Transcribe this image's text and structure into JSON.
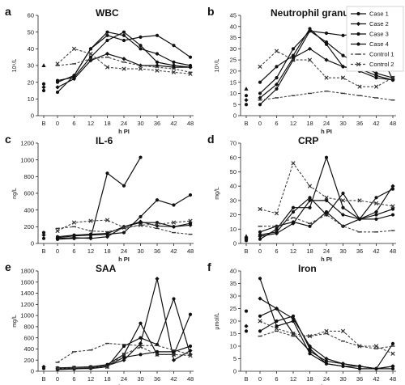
{
  "legend": [
    {
      "name": "Case 1",
      "marker": "circle",
      "dash": false
    },
    {
      "name": "Case 2",
      "marker": "diamond",
      "dash": false
    },
    {
      "name": "Case 3",
      "marker": "circle",
      "dash": false
    },
    {
      "name": "Case 4",
      "marker": "circle",
      "dash": false
    },
    {
      "name": "Control 1",
      "marker": "dash",
      "dash": true
    },
    {
      "name": "Control 2",
      "marker": "x",
      "dash": true
    }
  ],
  "chart_data": [
    {
      "type": "line",
      "letter": "a",
      "title": "WBC",
      "ylabel": "10⁹/L",
      "xlabel": "h PI",
      "baseline_label": "B",
      "categories": [
        "0",
        "6",
        "12",
        "18",
        "24",
        "30",
        "36",
        "42",
        "48"
      ],
      "ylim": [
        0,
        60
      ],
      "yticks": [
        0,
        10,
        20,
        30,
        40,
        50,
        60
      ],
      "baseline": [
        [
          15,
          "circle"
        ],
        [
          17,
          "diamond"
        ],
        [
          19,
          "circle"
        ],
        [
          30,
          "triangle"
        ]
      ],
      "series": [
        {
          "name": "Case 1",
          "values": [
            14,
            24,
            40,
            48,
            45,
            47,
            48,
            42,
            35
          ]
        },
        {
          "name": "Case 2",
          "values": [
            17,
            22,
            33,
            37,
            34,
            30,
            30,
            29,
            29
          ]
        },
        {
          "name": "Case 3",
          "values": [
            21,
            23,
            35,
            45,
            50,
            42,
            32,
            30,
            29
          ]
        },
        {
          "name": "Case 4",
          "values": [
            20,
            24,
            40,
            50,
            48,
            40,
            37,
            32,
            30
          ]
        },
        {
          "name": "Control 1",
          "values": [
            30,
            31,
            34,
            35,
            32,
            30,
            29,
            28,
            26
          ]
        },
        {
          "name": "Control 2",
          "values": [
            31,
            40,
            37,
            29,
            28,
            28,
            27,
            26,
            25
          ]
        }
      ]
    },
    {
      "type": "line",
      "letter": "b",
      "title": "Neutrophil granulocytes",
      "ylabel": "10⁹/L",
      "xlabel": "h PI",
      "baseline_label": "B",
      "categories": [
        "0",
        "6",
        "12",
        "18",
        "24",
        "30",
        "36",
        "42",
        "48"
      ],
      "ylim": [
        0,
        45
      ],
      "yticks": [
        0,
        5,
        10,
        15,
        20,
        25,
        30,
        35,
        40,
        45
      ],
      "baseline": [
        [
          5,
          "circle"
        ],
        [
          7,
          "diamond"
        ],
        [
          9,
          "circle"
        ],
        [
          12,
          "triangle"
        ]
      ],
      "series": [
        {
          "name": "Case 1",
          "values": [
            5,
            12,
            25,
            38,
            37,
            36,
            37,
            32,
            16
          ]
        },
        {
          "name": "Case 2",
          "values": [
            8,
            14,
            26,
            30,
            25,
            22,
            21,
            18,
            16
          ]
        },
        {
          "name": "Case 3",
          "values": [
            10,
            17,
            30,
            38,
            33,
            27,
            23,
            19,
            17
          ]
        },
        {
          "name": "Case 4",
          "values": [
            15,
            22,
            27,
            39,
            32,
            22,
            20,
            17,
            16
          ]
        },
        {
          "name": "Control 1",
          "values": [
            7,
            8,
            9,
            10,
            11,
            10,
            9,
            8,
            7
          ]
        },
        {
          "name": "Control 2",
          "values": [
            22,
            29,
            25,
            25,
            17,
            17,
            13,
            13,
            17
          ]
        }
      ]
    },
    {
      "type": "line",
      "letter": "c",
      "title": "IL-6",
      "ylabel": "ng/L",
      "xlabel": "h PI",
      "baseline_label": "B",
      "categories": [
        "0",
        "6",
        "12",
        "18",
        "24",
        "30",
        "36",
        "42",
        "48"
      ],
      "ylim": [
        0,
        1200
      ],
      "yticks": [
        0,
        200,
        400,
        600,
        800,
        1000,
        1200
      ],
      "baseline": [
        [
          60,
          "circle"
        ],
        [
          100,
          "diamond"
        ],
        [
          130,
          "circle"
        ]
      ],
      "series": [
        {
          "name": "Case 1",
          "values": [
            50,
            60,
            70,
            840,
            690,
            1030,
            null,
            null,
            null
          ]
        },
        {
          "name": "Case 2",
          "values": [
            60,
            70,
            60,
            80,
            200,
            260,
            210,
            200,
            220
          ]
        },
        {
          "name": "Case 3",
          "values": [
            70,
            90,
            100,
            110,
            130,
            320,
            520,
            460,
            580
          ]
        },
        {
          "name": "Case 4",
          "values": [
            80,
            100,
            110,
            120,
            200,
            250,
            250,
            200,
            240
          ]
        },
        {
          "name": "Control 1",
          "values": [
            180,
            200,
            150,
            140,
            180,
            220,
            180,
            130,
            110
          ]
        },
        {
          "name": "Control 2",
          "values": [
            150,
            250,
            270,
            280,
            190,
            220,
            230,
            250,
            270
          ]
        }
      ]
    },
    {
      "type": "line",
      "letter": "d",
      "title": "CRP",
      "ylabel": "mg/L",
      "xlabel": "h PI",
      "baseline_label": "B",
      "categories": [
        "0",
        "6",
        "12",
        "18",
        "24",
        "30",
        "36",
        "42",
        "48"
      ],
      "ylim": [
        0,
        70
      ],
      "yticks": [
        0,
        10,
        20,
        30,
        40,
        50,
        60,
        70
      ],
      "baseline": [
        [
          2,
          "circle"
        ],
        [
          3,
          "diamond"
        ],
        [
          4,
          "circle"
        ],
        [
          5,
          "triangle"
        ]
      ],
      "series": [
        {
          "name": "Case 1",
          "values": [
            3,
            10,
            25,
            25,
            60,
            25,
            17,
            32,
            38
          ]
        },
        {
          "name": "Case 2",
          "values": [
            5,
            7,
            14,
            30,
            30,
            20,
            17,
            22,
            40
          ]
        },
        {
          "name": "Case 3",
          "values": [
            6,
            8,
            22,
            32,
            20,
            35,
            17,
            20,
            24
          ]
        },
        {
          "name": "Case 4",
          "values": [
            8,
            12,
            15,
            12,
            22,
            12,
            17,
            17,
            20
          ]
        },
        {
          "name": "Control 1",
          "values": [
            12,
            12,
            18,
            14,
            20,
            12,
            8,
            8,
            9
          ]
        },
        {
          "name": "Control 2",
          "values": [
            24,
            21,
            56,
            40,
            32,
            30,
            30,
            28,
            26
          ]
        }
      ]
    },
    {
      "type": "line",
      "letter": "e",
      "title": "SAA",
      "ylabel": "mg/L",
      "xlabel": "h PI",
      "baseline_label": "B",
      "categories": [
        "0",
        "6",
        "12",
        "18",
        "24",
        "30",
        "36",
        "42",
        "48"
      ],
      "ylim": [
        0,
        1800
      ],
      "yticks": [
        0,
        200,
        400,
        600,
        800,
        1000,
        1200,
        1400,
        1600,
        1800
      ],
      "baseline": [
        [
          50,
          "circle"
        ],
        [
          80,
          "diamond"
        ]
      ],
      "series": [
        {
          "name": "Case 1",
          "values": [
            60,
            70,
            80,
            120,
            300,
            860,
            300,
            300,
            1020
          ]
        },
        {
          "name": "Case 2",
          "values": [
            50,
            50,
            60,
            100,
            200,
            500,
            1660,
            200,
            370
          ]
        },
        {
          "name": "Case 3",
          "values": [
            40,
            50,
            50,
            80,
            450,
            600,
            480,
            1300,
            300
          ]
        },
        {
          "name": "Case 4",
          "values": [
            30,
            40,
            60,
            100,
            250,
            300,
            350,
            350,
            450
          ]
        },
        {
          "name": "Control 1",
          "values": [
            160,
            350,
            380,
            500,
            480,
            460,
            460,
            380,
            300
          ]
        },
        {
          "name": "Control 2",
          "values": [
            50,
            60,
            70,
            80,
            300,
            440,
            300,
            300,
            280
          ]
        }
      ]
    },
    {
      "type": "line",
      "letter": "f",
      "title": "Iron",
      "ylabel": "μmol/L",
      "xlabel": "h PI",
      "baseline_label": "B",
      "categories": [
        "0",
        "6",
        "12",
        "18",
        "24",
        "30",
        "36",
        "42",
        "48"
      ],
      "ylim": [
        0,
        40
      ],
      "yticks": [
        0,
        5,
        10,
        15,
        20,
        25,
        30,
        35,
        40
      ],
      "baseline": [
        [
          16,
          "circle"
        ],
        [
          18,
          "diamond"
        ],
        [
          24,
          "circle"
        ]
      ],
      "series": [
        {
          "name": "Case 1",
          "values": [
            37,
            18,
            20,
            7,
            3,
            2,
            1,
            1,
            1
          ]
        },
        {
          "name": "Case 2",
          "values": [
            29,
            25,
            21,
            10,
            5,
            3,
            2,
            1,
            2
          ]
        },
        {
          "name": "Case 3",
          "values": [
            22,
            25,
            15,
            8,
            4,
            3,
            2,
            1,
            11
          ]
        },
        {
          "name": "Case 4",
          "values": [
            16,
            20,
            22,
            9,
            3,
            2,
            2,
            1,
            2
          ]
        },
        {
          "name": "Control 1",
          "values": [
            14,
            16,
            14,
            14,
            15,
            12,
            10,
            9,
            10
          ]
        },
        {
          "name": "Control 2",
          "values": [
            20,
            17,
            15,
            14,
            16,
            16,
            10,
            10,
            7
          ]
        }
      ]
    }
  ]
}
